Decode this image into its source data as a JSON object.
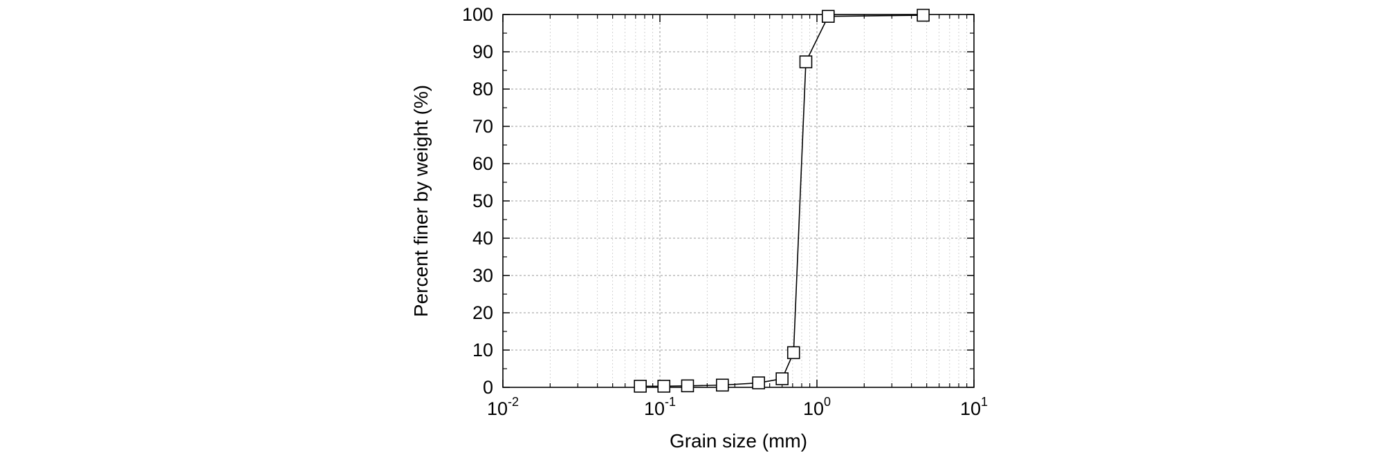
{
  "chart_data": {
    "type": "line",
    "xlabel": "Grain size (mm)",
    "ylabel": "Percent finer by weight (%)",
    "x_scale": "log",
    "xlim": [
      0.01,
      10
    ],
    "ylim": [
      0,
      100
    ],
    "grid": true,
    "x_ticks": [
      {
        "base": "10",
        "exp": "-2",
        "value": 0.01
      },
      {
        "base": "10",
        "exp": "-1",
        "value": 0.1
      },
      {
        "base": "10",
        "exp": "0",
        "value": 1
      },
      {
        "base": "10",
        "exp": "1",
        "value": 10
      }
    ],
    "y_ticks": [
      "0",
      "10",
      "20",
      "30",
      "40",
      "50",
      "60",
      "70",
      "80",
      "90",
      "100"
    ],
    "series": [
      {
        "marker": "open-square",
        "color": "#000000",
        "x": [
          0.075,
          0.106,
          0.15,
          0.25,
          0.425,
          0.6,
          0.71,
          0.85,
          1.18,
          4.75
        ],
        "y": [
          0.3,
          0.3,
          0.4,
          0.6,
          1.2,
          2.3,
          9.3,
          87.3,
          99.5,
          99.8
        ]
      }
    ]
  }
}
